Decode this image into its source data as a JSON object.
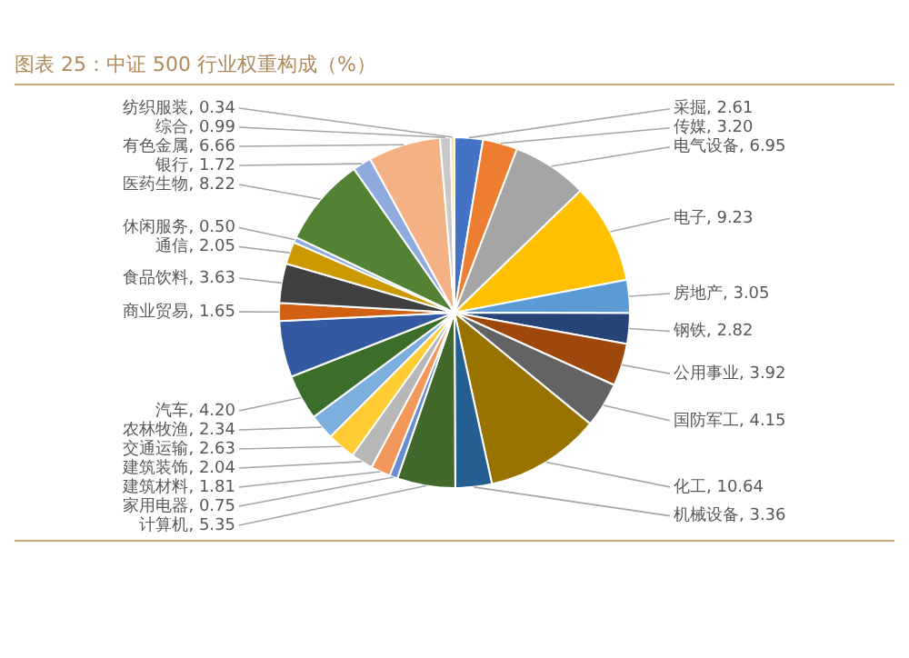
{
  "chart_data": {
    "type": "pie",
    "title": "图表 25：中证 500 行业权重构成（%）",
    "categories": [
      "采掘",
      "传媒",
      "电气设备",
      "电子",
      "房地产",
      "钢铁",
      "公用事业",
      "国防军工",
      "化工",
      "机械设备",
      "计算机",
      "家用电器",
      "建筑材料",
      "建筑装饰",
      "交通运输",
      "农林牧渔",
      "汽车",
      null,
      "商业贸易",
      "食品饮料",
      "通信",
      "休闲服务",
      "医药生物",
      "银行",
      "有色金属",
      "综合",
      "纺织服装"
    ],
    "values": [
      2.61,
      3.2,
      6.95,
      9.23,
      3.05,
      2.82,
      3.92,
      4.15,
      10.64,
      3.36,
      5.35,
      0.75,
      1.81,
      2.04,
      2.63,
      2.34,
      4.2,
      5.19,
      1.65,
      3.63,
      2.05,
      0.5,
      8.22,
      1.72,
      6.66,
      0.99,
      0.34
    ],
    "value_labels": [
      "2.61",
      "3.20",
      "6.95",
      "9.23",
      "3.05",
      "2.82",
      "3.92",
      "4.15",
      "10.64",
      "3.36",
      "5.35",
      "0.75",
      "1.81",
      "2.04",
      "2.63",
      "2.34",
      "4.20",
      null,
      "1.65",
      "3.63",
      "2.05",
      "0.50",
      "8.22",
      "1.72",
      "6.66",
      "0.99",
      "0.34"
    ],
    "colors": [
      "#4472c4",
      "#ed7d31",
      "#a5a5a5",
      "#ffc000",
      "#5b9bd5",
      "#264478",
      "#9e480e",
      "#636363",
      "#997300",
      "#255e91",
      "#43682b",
      "#698ed0",
      "#f1975a",
      "#b7b7b7",
      "#ffcd33",
      "#7cafdd",
      "#3b6e2a",
      "#335aa1",
      "#d26012",
      "#404040",
      "#cc9a00",
      "#8faadc",
      "#548235",
      "#8faadc",
      "#f4b183",
      "#c9c9c9",
      "#ffe699"
    ],
    "legend": false
  }
}
